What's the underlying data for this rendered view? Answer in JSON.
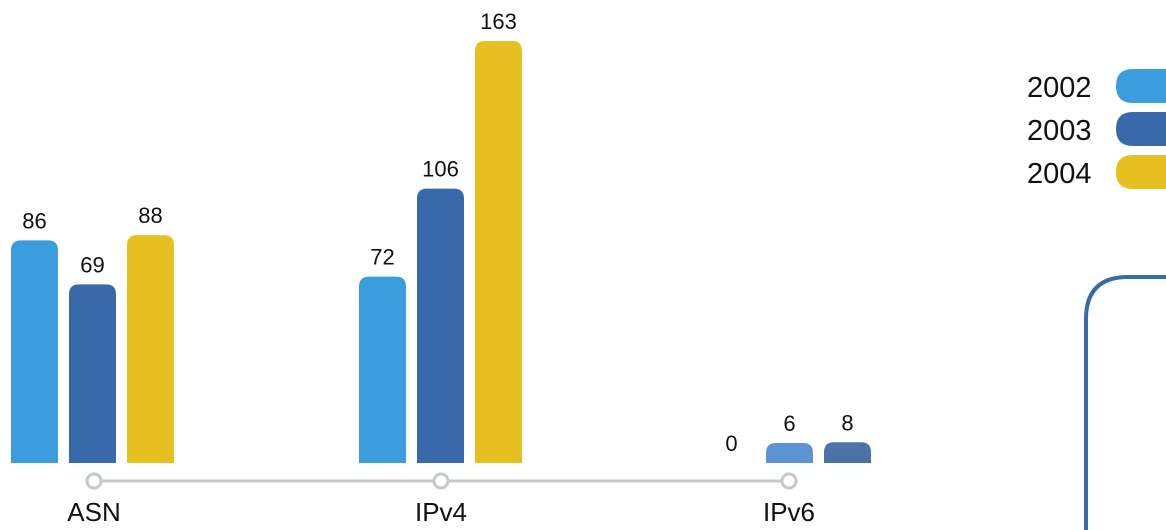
{
  "chart_data": {
    "type": "bar",
    "categories": [
      "ASN",
      "IPv4",
      "IPv6"
    ],
    "series": [
      {
        "name": "2002",
        "color": "#3b9ddd",
        "values": [
          86,
          72,
          0
        ]
      },
      {
        "name": "2003",
        "color": "#386aab",
        "values": [
          69,
          106,
          6
        ]
      },
      {
        "name": "2004",
        "color": "#e5c020",
        "values": [
          88,
          163,
          8
        ]
      }
    ],
    "data_labels": [
      [
        "86",
        "69",
        "88"
      ],
      [
        "72",
        "106",
        "163"
      ],
      [
        "0",
        "6",
        "8"
      ]
    ],
    "title": "",
    "xlabel": "",
    "ylabel": "",
    "ylim": [
      0,
      163
    ],
    "grid": false,
    "legend_position": "top-right",
    "axis_color": "#c8c8c8",
    "frame_color": "#386aab"
  }
}
